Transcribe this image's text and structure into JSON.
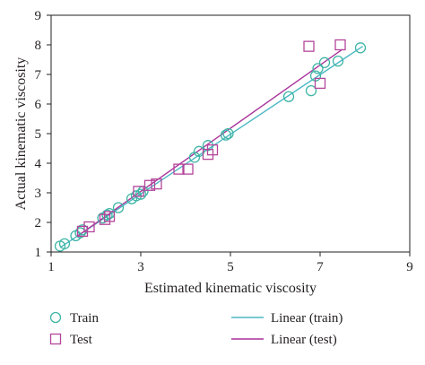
{
  "chart_data": {
    "type": "scatter",
    "title": "",
    "xlabel": "Estimated kinematic viscosity",
    "ylabel": "Actual kinematic viscosity",
    "xlim": [
      1,
      9
    ],
    "ylim": [
      1,
      9
    ],
    "xticks": [
      "1",
      "3",
      "5",
      "7",
      "9"
    ],
    "yticks": [
      "1",
      "2",
      "3",
      "4",
      "5",
      "6",
      "7",
      "8",
      "9"
    ],
    "grid": false,
    "legend_position": "bottom",
    "series": [
      {
        "name": "Train",
        "marker": "circle",
        "color": "#3fb5a6",
        "points": [
          [
            1.2,
            1.2
          ],
          [
            1.3,
            1.28
          ],
          [
            1.55,
            1.55
          ],
          [
            1.65,
            1.65
          ],
          [
            1.7,
            1.75
          ],
          [
            2.15,
            2.15
          ],
          [
            2.25,
            2.25
          ],
          [
            2.3,
            2.3
          ],
          [
            2.5,
            2.5
          ],
          [
            2.8,
            2.8
          ],
          [
            2.9,
            2.9
          ],
          [
            3.0,
            2.95
          ],
          [
            3.05,
            3.05
          ],
          [
            4.2,
            4.2
          ],
          [
            4.3,
            4.4
          ],
          [
            4.5,
            4.6
          ],
          [
            4.9,
            4.95
          ],
          [
            4.95,
            5.0
          ],
          [
            6.3,
            6.25
          ],
          [
            6.8,
            6.45
          ],
          [
            6.9,
            6.95
          ],
          [
            6.95,
            7.2
          ],
          [
            7.1,
            7.4
          ],
          [
            7.4,
            7.45
          ],
          [
            7.9,
            7.9
          ]
        ]
      },
      {
        "name": "Test",
        "marker": "square",
        "color": "#b5459b",
        "points": [
          [
            1.7,
            1.7
          ],
          [
            1.85,
            1.85
          ],
          [
            2.2,
            2.1
          ],
          [
            2.3,
            2.2
          ],
          [
            2.95,
            3.05
          ],
          [
            3.2,
            3.25
          ],
          [
            3.35,
            3.3
          ],
          [
            3.85,
            3.8
          ],
          [
            4.05,
            3.8
          ],
          [
            4.5,
            4.3
          ],
          [
            4.6,
            4.45
          ],
          [
            6.75,
            7.95
          ],
          [
            7.0,
            6.7
          ],
          [
            7.45,
            8.0
          ]
        ]
      }
    ],
    "trendlines": [
      {
        "name": "Linear (train)",
        "color": "#4bb8c4",
        "from": [
          1.2,
          1.15
        ],
        "to": [
          7.95,
          7.95
        ]
      },
      {
        "name": "Linear (test)",
        "color": "#a8329a",
        "from": [
          1.6,
          1.55
        ],
        "to": [
          7.5,
          7.85
        ]
      }
    ],
    "legend": [
      {
        "label": "Train",
        "kind": "circle",
        "color": "#3fb5a6"
      },
      {
        "label": "Test",
        "kind": "square",
        "color": "#b5459b"
      },
      {
        "label": "Linear (train)",
        "kind": "line",
        "color": "#4bb8c4"
      },
      {
        "label": "Linear (test)",
        "kind": "line",
        "color": "#a8329a"
      }
    ]
  }
}
